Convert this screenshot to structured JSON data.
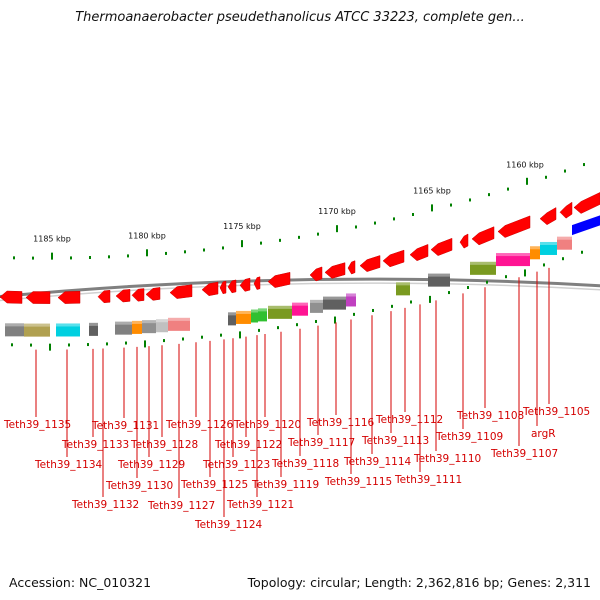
{
  "title": "Thermoanaerobacter pseudethanolicus ATCC 33223, complete gen...",
  "accession": "Accession: NC_010321",
  "topology": "Topology: circular; Length: 2,362,816 bp; Genes: 2,311",
  "colors": {
    "gene_arrow": "#ff0000",
    "ruler_tick": "#008000",
    "backbone": "#808080",
    "label": "#d40000"
  },
  "ruler": {
    "labels": [
      "1185 kbp",
      "1180 kbp",
      "1175 kbp",
      "1170 kbp",
      "1165 kbp",
      "1160 kbp"
    ]
  },
  "genes": [
    {
      "label": "Teth39_1135"
    },
    {
      "label": "Teth39_1134"
    },
    {
      "label": "Teth39_1133"
    },
    {
      "label": "Teth39_1132"
    },
    {
      "label": "Teth39_1131"
    },
    {
      "label": "Teth39_1130"
    },
    {
      "label": "Teth39_1129"
    },
    {
      "label": "Teth39_1128"
    },
    {
      "label": "Teth39_1127"
    },
    {
      "label": "Teth39_1126"
    },
    {
      "label": "Teth39_1125"
    },
    {
      "label": "Teth39_1124"
    },
    {
      "label": "Teth39_1123"
    },
    {
      "label": "Teth39_1122"
    },
    {
      "label": "Teth39_1121"
    },
    {
      "label": "Teth39_1120"
    },
    {
      "label": "Teth39_1119"
    },
    {
      "label": "Teth39_1118"
    },
    {
      "label": "Teth39_1117"
    },
    {
      "label": "Teth39_1116"
    },
    {
      "label": "Teth39_1115"
    },
    {
      "label": "Teth39_1114"
    },
    {
      "label": "Teth39_1113"
    },
    {
      "label": "Teth39_1112"
    },
    {
      "label": "Teth39_1111"
    },
    {
      "label": "Teth39_1110"
    },
    {
      "label": "Teth39_1109"
    },
    {
      "label": "Teth39_1108"
    },
    {
      "label": "argR"
    },
    {
      "label": "Teth39_1107"
    },
    {
      "label": "Teth39_1105"
    }
  ],
  "domain_colors": [
    "#808080",
    "#b0a050",
    "#00d0e0",
    "#606060",
    "#ff8c00",
    "#909090",
    "#c0c0c0",
    "#f08080",
    "#30c030",
    "#7a9a20",
    "#ff1493",
    "#c040c0",
    "#0000ff"
  ]
}
